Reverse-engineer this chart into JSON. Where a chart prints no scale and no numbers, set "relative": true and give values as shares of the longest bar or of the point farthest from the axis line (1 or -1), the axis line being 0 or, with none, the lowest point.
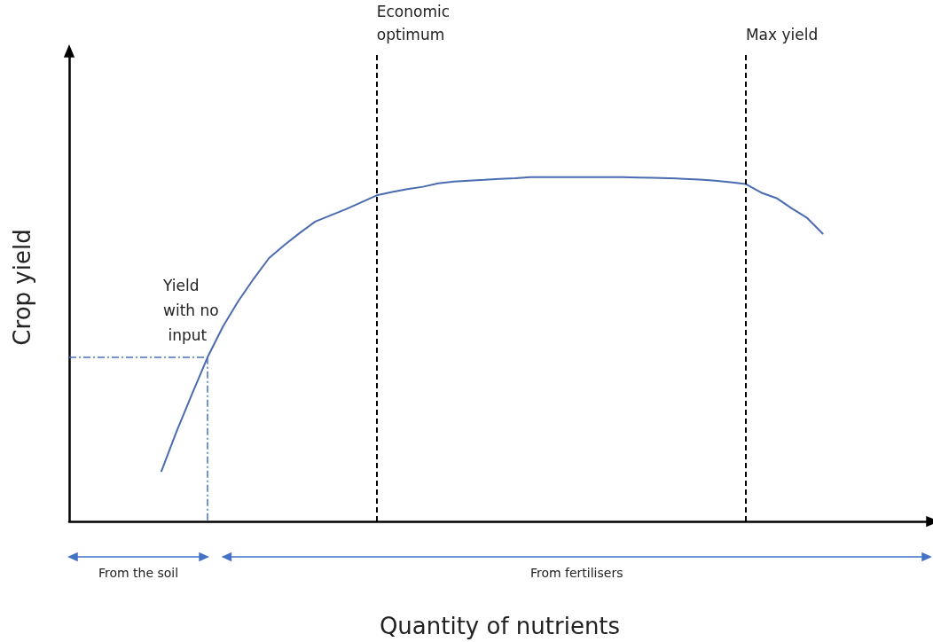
{
  "chart_data": {
    "type": "line",
    "relative": true,
    "xlabel": "Quantity of nutrients",
    "ylabel": "Crop yield",
    "categories": [
      null,
      null,
      null,
      null,
      null,
      null,
      null,
      null,
      null,
      null,
      null,
      null,
      null,
      null,
      null,
      null,
      null,
      null,
      null,
      null,
      null,
      null,
      null,
      null,
      null,
      null,
      null,
      null,
      null,
      null,
      null,
      null,
      null,
      null,
      null,
      null,
      null,
      null,
      null,
      null,
      null,
      null,
      null,
      null,
      null,
      null,
      null,
      null,
      null,
      null,
      null,
      null,
      null,
      null,
      null,
      null,
      null
    ],
    "series": [
      {
        "color": "#4a6bb0",
        "values": [
          null,
          null,
          null,
          null,
          null,
          null,
          0.146,
          0.263,
          0.371,
          0.477,
          0.566,
          0.64,
          0.705,
          0.765,
          0.803,
          0.838,
          0.871,
          0.889,
          0.907,
          0.927,
          0.947,
          0.957,
          0.965,
          0.972,
          0.982,
          0.987,
          0.99,
          0.992,
          0.995,
          0.997,
          1,
          1,
          1,
          1,
          1,
          1,
          1,
          0.999,
          0.998,
          0.997,
          0.995,
          0.993,
          0.99,
          0.985,
          0.98,
          0.955,
          0.939,
          0.909,
          0.881,
          0.836,
          null,
          null,
          null,
          null,
          null,
          null,
          null
        ]
      }
    ],
    "grid": false,
    "marker": "none",
    "line_style": "solid",
    "annotations": [
      "Economic optimum",
      "Max yield",
      "Yield with no input",
      "From the soil",
      "From fertilisers"
    ]
  }
}
